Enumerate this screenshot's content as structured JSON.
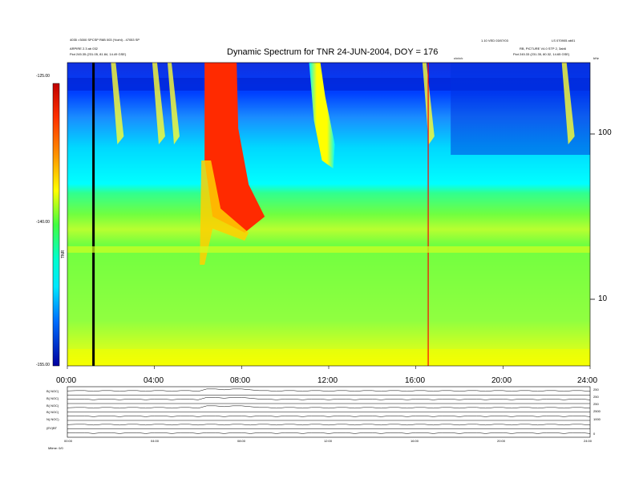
{
  "header": {
    "left_line1": "4035 >3000 SPCSP R6B 003 (Yozhi) - 47053 SP",
    "left_line2": "ARPIRE 2.3 ab 032",
    "left_line3": "Ftot  245.35 (231.05, 81.84, 14.49 GSE)",
    "right_line1": "1.10 VED 03/07/03",
    "right_line2": "LS 070905 ab01",
    "right_line3": "RB, PICTURE  V4.0 STP 2, 3ab6",
    "right_line4": "Ftot  245.33 (231.35, 80.32, 14.65 GSE)",
    "units_label": "c/c/c/c",
    "khz_label": "kHz"
  },
  "chart_data": [
    {
      "type": "heatmap",
      "title": "Dynamic Spectrum for TNR 24-JUN-2004, DOY = 176",
      "xlim": [
        0,
        24
      ],
      "x_ticks": [
        "00:00",
        "04:00",
        "08:00",
        "12:00",
        "16:00",
        "20:00",
        "24:00"
      ],
      "y_scale": "log",
      "y_ticks_right": [
        "100",
        "10"
      ],
      "y_tick_values": [
        100,
        10
      ],
      "colorbar": {
        "label": "TNR",
        "range": [
          -155,
          -125
        ],
        "ticks": [
          "-125.00",
          "-140.00",
          "-155.00"
        ],
        "colors": [
          "#0000b4",
          "#0050ff",
          "#00e0ff",
          "#00ffc0",
          "#30ff30",
          "#c0ff00",
          "#ffff00",
          "#ffa000",
          "#ff2000",
          "#c00000"
        ]
      },
      "features": {
        "data_gaps_hours": [
          1.2,
          16.6
        ],
        "type_ii_burst_start_hours": [
          6.3,
          11.1
        ],
        "plasma_line_level_khz": 20
      },
      "colors": {
        "background_level": "#00ffff",
        "mid_band": "#7cff3c",
        "low_band": "#b0ff3a",
        "floor": "#ffff00",
        "burst": "#ff2000"
      }
    },
    {
      "type": "line",
      "x_ticks": [
        "00:00",
        "04:00",
        "08:00",
        "12:00",
        "16:00",
        "20:00",
        "24:00"
      ],
      "panels": [
        {
          "label": "B( NOC)",
          "right": "250"
        },
        {
          "label": "B( NOC)",
          "right": "250"
        },
        {
          "label": "B( NOC)",
          "right": "250"
        },
        {
          "label": "B( NOC)",
          "right": "2500"
        },
        {
          "label": "N( NOC)",
          "right": "1000"
        },
        {
          "label": "(EV)BT",
          "right": "0"
        }
      ]
    }
  ],
  "footer": {
    "left": "Mtime: 0/0"
  }
}
